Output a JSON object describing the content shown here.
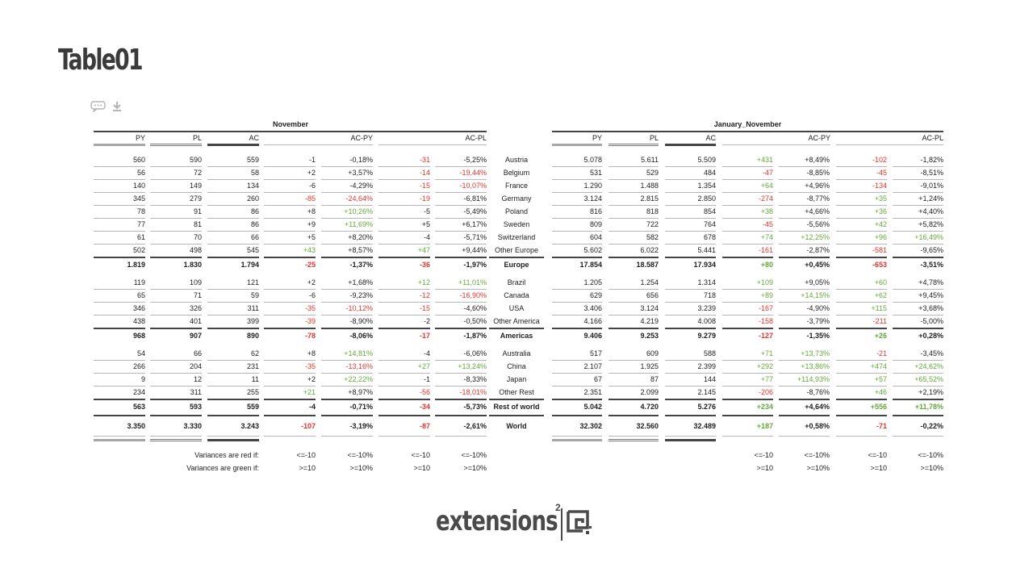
{
  "page": {
    "title": "Table01"
  },
  "toolbar": {
    "comment_icon": "speech-bubble-icon",
    "download_icon": "download-icon"
  },
  "headers": {
    "left_group": "November",
    "right_group": "January_November",
    "cols": [
      "PY",
      "PL",
      "AC",
      "AC-PY",
      "AC-PL"
    ]
  },
  "rows": [
    {
      "type": "data",
      "label": "Austria",
      "l": [
        "560",
        "590",
        "559",
        "-1",
        "-0,18%",
        "-31",
        "-5,25%"
      ],
      "lc": [
        "",
        "",
        "",
        "",
        "",
        "red",
        ""
      ],
      "r": [
        "5.078",
        "5.611",
        "5.509",
        "+431",
        "+8,49%",
        "-102",
        "-1,82%"
      ],
      "rc": [
        "",
        "",
        "",
        "grn",
        "",
        "red",
        ""
      ]
    },
    {
      "type": "data",
      "label": "Belgium",
      "l": [
        "56",
        "72",
        "58",
        "+2",
        "+3,57%",
        "-14",
        "-19,44%"
      ],
      "lc": [
        "",
        "",
        "",
        "",
        "",
        "red",
        "red"
      ],
      "r": [
        "531",
        "529",
        "484",
        "-47",
        "-8,85%",
        "-45",
        "-8,51%"
      ],
      "rc": [
        "",
        "",
        "",
        "red",
        "",
        "red",
        ""
      ]
    },
    {
      "type": "data",
      "label": "France",
      "l": [
        "140",
        "149",
        "134",
        "-6",
        "-4,29%",
        "-15",
        "-10,07%"
      ],
      "lc": [
        "",
        "",
        "",
        "",
        "",
        "red",
        "red"
      ],
      "r": [
        "1.290",
        "1.488",
        "1.354",
        "+64",
        "+4,96%",
        "-134",
        "-9,01%"
      ],
      "rc": [
        "",
        "",
        "",
        "grn",
        "",
        "red",
        ""
      ]
    },
    {
      "type": "data",
      "label": "Germany",
      "l": [
        "345",
        "279",
        "260",
        "-85",
        "-24,64%",
        "-19",
        "-6,81%"
      ],
      "lc": [
        "",
        "",
        "",
        "red",
        "red",
        "red",
        ""
      ],
      "r": [
        "3.124",
        "2.815",
        "2.850",
        "-274",
        "-8,77%",
        "+35",
        "+1,24%"
      ],
      "rc": [
        "",
        "",
        "",
        "red",
        "",
        "grn",
        ""
      ]
    },
    {
      "type": "data",
      "label": "Poland",
      "l": [
        "78",
        "91",
        "86",
        "+8",
        "+10,26%",
        "-5",
        "-5,49%"
      ],
      "lc": [
        "",
        "",
        "",
        "",
        "grn",
        "",
        ""
      ],
      "r": [
        "816",
        "818",
        "854",
        "+38",
        "+4,66%",
        "+36",
        "+4,40%"
      ],
      "rc": [
        "",
        "",
        "",
        "grn",
        "",
        "grn",
        ""
      ]
    },
    {
      "type": "data",
      "label": "Sweden",
      "l": [
        "77",
        "81",
        "86",
        "+9",
        "+11,69%",
        "+5",
        "+6,17%"
      ],
      "lc": [
        "",
        "",
        "",
        "",
        "grn",
        "",
        ""
      ],
      "r": [
        "809",
        "722",
        "764",
        "-45",
        "-5,56%",
        "+42",
        "+5,82%"
      ],
      "rc": [
        "",
        "",
        "",
        "red",
        "",
        "grn",
        ""
      ]
    },
    {
      "type": "data",
      "label": "Switzerland",
      "l": [
        "61",
        "70",
        "66",
        "+5",
        "+8,20%",
        "-4",
        "-5,71%"
      ],
      "lc": [
        "",
        "",
        "",
        "",
        "",
        "",
        ""
      ],
      "r": [
        "604",
        "582",
        "678",
        "+74",
        "+12,25%",
        "+96",
        "+16,49%"
      ],
      "rc": [
        "",
        "",
        "",
        "grn",
        "grn",
        "grn",
        "grn"
      ]
    },
    {
      "type": "data",
      "label": "Other Europe",
      "l": [
        "502",
        "498",
        "545",
        "+43",
        "+8,57%",
        "+47",
        "+9,44%"
      ],
      "lc": [
        "",
        "",
        "",
        "grn",
        "",
        "grn",
        ""
      ],
      "r": [
        "5.602",
        "6.022",
        "5.441",
        "-161",
        "-2,87%",
        "-581",
        "-9,65%"
      ],
      "rc": [
        "",
        "",
        "",
        "red",
        "",
        "red",
        ""
      ]
    },
    {
      "type": "total",
      "label": "Europe",
      "l": [
        "1.819",
        "1.830",
        "1.794",
        "-25",
        "-1,37%",
        "-36",
        "-1,97%"
      ],
      "lc": [
        "",
        "",
        "",
        "red",
        "",
        "red",
        ""
      ],
      "r": [
        "17.854",
        "18.587",
        "17.934",
        "+80",
        "+0,45%",
        "-653",
        "-3,51%"
      ],
      "rc": [
        "",
        "",
        "",
        "grn",
        "",
        "red",
        ""
      ]
    },
    {
      "type": "data",
      "label": "Brazil",
      "l": [
        "119",
        "109",
        "121",
        "+2",
        "+1,68%",
        "+12",
        "+11,01%"
      ],
      "lc": [
        "",
        "",
        "",
        "",
        "",
        "grn",
        "grn"
      ],
      "r": [
        "1.205",
        "1.254",
        "1.314",
        "+109",
        "+9,05%",
        "+60",
        "+4,78%"
      ],
      "rc": [
        "",
        "",
        "",
        "grn",
        "",
        "grn",
        ""
      ]
    },
    {
      "type": "data",
      "label": "Canada",
      "l": [
        "65",
        "71",
        "59",
        "-6",
        "-9,23%",
        "-12",
        "-16,90%"
      ],
      "lc": [
        "",
        "",
        "",
        "",
        "",
        "red",
        "red"
      ],
      "r": [
        "629",
        "656",
        "718",
        "+89",
        "+14,15%",
        "+62",
        "+9,45%"
      ],
      "rc": [
        "",
        "",
        "",
        "grn",
        "grn",
        "grn",
        ""
      ]
    },
    {
      "type": "data",
      "label": "USA",
      "l": [
        "346",
        "326",
        "311",
        "-35",
        "-10,12%",
        "-15",
        "-4,60%"
      ],
      "lc": [
        "",
        "",
        "",
        "red",
        "red",
        "red",
        ""
      ],
      "r": [
        "3.406",
        "3.124",
        "3.239",
        "-167",
        "-4,90%",
        "+115",
        "+3,68%"
      ],
      "rc": [
        "",
        "",
        "",
        "red",
        "",
        "grn",
        ""
      ]
    },
    {
      "type": "data",
      "label": "Other America",
      "l": [
        "438",
        "401",
        "399",
        "-39",
        "-8,90%",
        "-2",
        "-0,50%"
      ],
      "lc": [
        "",
        "",
        "",
        "red",
        "",
        "",
        ""
      ],
      "r": [
        "4.166",
        "4.219",
        "4.008",
        "-158",
        "-3,79%",
        "-211",
        "-5,00%"
      ],
      "rc": [
        "",
        "",
        "",
        "red",
        "",
        "red",
        ""
      ]
    },
    {
      "type": "total",
      "label": "Americas",
      "l": [
        "968",
        "907",
        "890",
        "-78",
        "-8,06%",
        "-17",
        "-1,87%"
      ],
      "lc": [
        "",
        "",
        "",
        "red",
        "",
        "red",
        ""
      ],
      "r": [
        "9.406",
        "9.253",
        "9.279",
        "-127",
        "-1,35%",
        "+26",
        "+0,28%"
      ],
      "rc": [
        "",
        "",
        "",
        "red",
        "",
        "grn",
        ""
      ]
    },
    {
      "type": "data",
      "label": "Australia",
      "l": [
        "54",
        "66",
        "62",
        "+8",
        "+14,81%",
        "-4",
        "-6,06%"
      ],
      "lc": [
        "",
        "",
        "",
        "",
        "grn",
        "",
        ""
      ],
      "r": [
        "517",
        "609",
        "588",
        "+71",
        "+13,73%",
        "-21",
        "-3,45%"
      ],
      "rc": [
        "",
        "",
        "",
        "grn",
        "grn",
        "red",
        ""
      ]
    },
    {
      "type": "data",
      "label": "China",
      "l": [
        "266",
        "204",
        "231",
        "-35",
        "-13,16%",
        "+27",
        "+13,24%"
      ],
      "lc": [
        "",
        "",
        "",
        "red",
        "red",
        "grn",
        "grn"
      ],
      "r": [
        "2.107",
        "1.925",
        "2.399",
        "+292",
        "+13,86%",
        "+474",
        "+24,62%"
      ],
      "rc": [
        "",
        "",
        "",
        "grn",
        "grn",
        "grn",
        "grn"
      ]
    },
    {
      "type": "data",
      "label": "Japan",
      "l": [
        "9",
        "12",
        "11",
        "+2",
        "+22,22%",
        "-1",
        "-8,33%"
      ],
      "lc": [
        "",
        "",
        "",
        "",
        "grn",
        "",
        ""
      ],
      "r": [
        "67",
        "87",
        "144",
        "+77",
        "+114,93%",
        "+57",
        "+65,52%"
      ],
      "rc": [
        "",
        "",
        "",
        "grn",
        "grn",
        "grn",
        "grn"
      ]
    },
    {
      "type": "data",
      "label": "Other Rest",
      "l": [
        "234",
        "311",
        "255",
        "+21",
        "+8,97%",
        "-56",
        "-18,01%"
      ],
      "lc": [
        "",
        "",
        "",
        "grn",
        "",
        "red",
        "red"
      ],
      "r": [
        "2.351",
        "2.099",
        "2.145",
        "-206",
        "-8,76%",
        "+46",
        "+2,19%"
      ],
      "rc": [
        "",
        "",
        "",
        "red",
        "",
        "grn",
        ""
      ]
    },
    {
      "type": "total",
      "label": "Rest of world",
      "l": [
        "563",
        "593",
        "559",
        "-4",
        "-0,71%",
        "-34",
        "-5,73%"
      ],
      "lc": [
        "",
        "",
        "",
        "",
        "",
        "red",
        ""
      ],
      "r": [
        "5.042",
        "4.720",
        "5.276",
        "+234",
        "+4,64%",
        "+556",
        "+11,78%"
      ],
      "rc": [
        "",
        "",
        "",
        "grn",
        "",
        "grn",
        "grn"
      ]
    },
    {
      "type": "grand",
      "label": "World",
      "l": [
        "3.350",
        "3.330",
        "3.243",
        "-107",
        "-3,19%",
        "-87",
        "-2,61%"
      ],
      "lc": [
        "",
        "",
        "",
        "red",
        "",
        "red",
        ""
      ],
      "r": [
        "32.302",
        "32.560",
        "32.489",
        "+187",
        "+0,58%",
        "-71",
        "-0,22%"
      ],
      "rc": [
        "",
        "",
        "",
        "grn",
        "",
        "red",
        ""
      ]
    }
  ],
  "legend": {
    "red_label": "Variances are red if:",
    "green_label": "Variances are green if:",
    "red_values": [
      "<=-10",
      "<=-10%",
      "<=-10",
      "<=-10%"
    ],
    "green_values": [
      ">=10",
      ">=10%",
      ">=10",
      ">=10%"
    ]
  },
  "logo": {
    "text": "extensions",
    "superscript": "2"
  },
  "colors": {
    "red": "#e8342c",
    "green": "#66a83c",
    "text": "#222222"
  }
}
